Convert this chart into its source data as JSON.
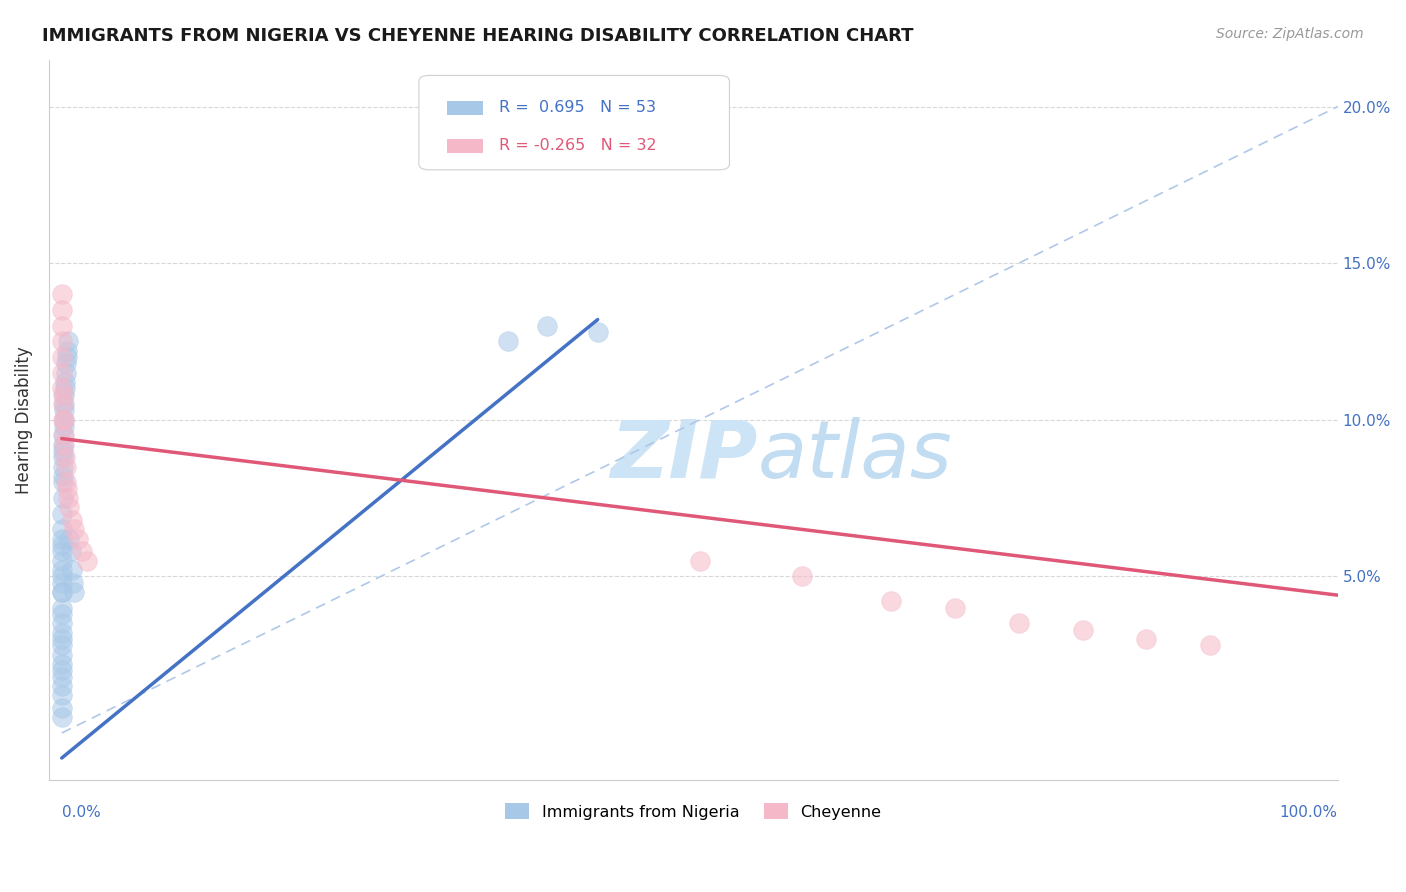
{
  "title": "IMMIGRANTS FROM NIGERIA VS CHEYENNE HEARING DISABILITY CORRELATION CHART",
  "source": "Source: ZipAtlas.com",
  "ylabel": "Hearing Disability",
  "r_nigeria": 0.695,
  "n_nigeria": 53,
  "r_cheyenne": -0.265,
  "n_cheyenne": 32,
  "legend_label_nigeria": "Immigrants from Nigeria",
  "legend_label_cheyenne": "Cheyenne",
  "color_nigeria": "#a8c8e8",
  "color_nigeria_line": "#4472c4",
  "color_cheyenne": "#f5b8c8",
  "color_cheyenne_line": "#e05878",
  "xlim_min": -0.01,
  "xlim_max": 1.0,
  "ylim_min": -0.015,
  "ylim_max": 0.215,
  "nigeria_x": [
    0.0,
    0.0001,
    0.0001,
    0.0001,
    0.0001,
    0.0001,
    0.0001,
    0.0001,
    0.0002,
    0.0002,
    0.0002,
    0.0002,
    0.0002,
    0.0003,
    0.0003,
    0.0003,
    0.0003,
    0.0004,
    0.0004,
    0.0004,
    0.0005,
    0.0005,
    0.0005,
    0.0006,
    0.0006,
    0.0007,
    0.0008,
    0.0009,
    0.001,
    0.001,
    0.0011,
    0.0012,
    0.0013,
    0.0014,
    0.0015,
    0.0016,
    0.0018,
    0.002,
    0.0022,
    0.0025,
    0.003,
    0.0035,
    0.004,
    0.0045,
    0.005,
    0.006,
    0.007,
    0.008,
    0.009,
    0.01,
    0.35,
    0.38,
    0.42
  ],
  "nigeria_y": [
    0.02,
    0.03,
    0.025,
    0.018,
    0.015,
    0.012,
    0.008,
    0.005,
    0.04,
    0.035,
    0.028,
    0.022,
    0.05,
    0.045,
    0.038,
    0.032,
    0.055,
    0.06,
    0.052,
    0.045,
    0.065,
    0.058,
    0.048,
    0.07,
    0.062,
    0.075,
    0.08,
    0.085,
    0.088,
    0.082,
    0.09,
    0.092,
    0.095,
    0.098,
    0.1,
    0.103,
    0.105,
    0.108,
    0.11,
    0.112,
    0.115,
    0.118,
    0.12,
    0.122,
    0.125,
    0.062,
    0.058,
    0.052,
    0.048,
    0.045,
    0.125,
    0.13,
    0.128
  ],
  "cheyenne_x": [
    0.0001,
    0.0001,
    0.0002,
    0.0003,
    0.0004,
    0.0005,
    0.0006,
    0.0008,
    0.001,
    0.0012,
    0.0015,
    0.0018,
    0.002,
    0.0025,
    0.003,
    0.0035,
    0.004,
    0.005,
    0.006,
    0.008,
    0.01,
    0.013,
    0.016,
    0.02,
    0.5,
    0.58,
    0.65,
    0.7,
    0.75,
    0.8,
    0.85,
    0.9
  ],
  "cheyenne_y": [
    0.14,
    0.135,
    0.125,
    0.13,
    0.12,
    0.115,
    0.11,
    0.108,
    0.105,
    0.1,
    0.095,
    0.1,
    0.092,
    0.088,
    0.085,
    0.08,
    0.078,
    0.075,
    0.072,
    0.068,
    0.065,
    0.062,
    0.058,
    0.055,
    0.055,
    0.05,
    0.042,
    0.04,
    0.035,
    0.033,
    0.03,
    0.028
  ],
  "background_color": "#ffffff",
  "grid_color": "#d8d8d8",
  "watermark_color": "#cce4f5"
}
